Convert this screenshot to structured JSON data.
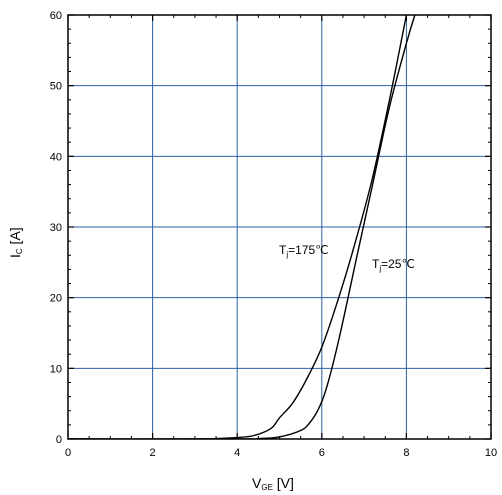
{
  "chart_data": {
    "type": "line",
    "xlabel": {
      "main": "V",
      "sub": "GE",
      "unit": " [V]"
    },
    "ylabel": {
      "main": "I",
      "sub": "C",
      "unit": " [A]"
    },
    "xlim": [
      0,
      10
    ],
    "ylim": [
      0,
      60
    ],
    "xticks": [
      0,
      2,
      4,
      6,
      8,
      10
    ],
    "yticks": [
      0,
      10,
      20,
      30,
      40,
      50,
      60
    ],
    "grid": true,
    "grid_color": "#2b5fa8",
    "line_color": "#000000",
    "series": [
      {
        "name": "Tj=175°C",
        "label": {
          "main": "T",
          "sub": "j",
          "rest": "=175℃"
        },
        "x": [
          0,
          3.0,
          3.5,
          4.0,
          4.4,
          4.8,
          5.0,
          5.3,
          5.6,
          6.0,
          6.4,
          6.8,
          7.2,
          7.6,
          8.0
        ],
        "y": [
          0,
          0,
          0.05,
          0.2,
          0.5,
          1.5,
          3.0,
          5.0,
          8.0,
          13.0,
          20.0,
          28.0,
          37.0,
          48.0,
          60.0
        ]
      },
      {
        "name": "Tj=25°C",
        "label": {
          "main": "T",
          "sub": "j",
          "rest": "=25℃"
        },
        "x": [
          0,
          4.0,
          4.5,
          5.0,
          5.5,
          5.7,
          5.9,
          6.1,
          6.4,
          6.8,
          7.2,
          7.6,
          8.0,
          8.2
        ],
        "y": [
          0,
          0,
          0.05,
          0.3,
          1.2,
          2.2,
          4.0,
          7.0,
          14.0,
          25.0,
          36.0,
          47.0,
          56.0,
          60.0
        ]
      }
    ]
  }
}
